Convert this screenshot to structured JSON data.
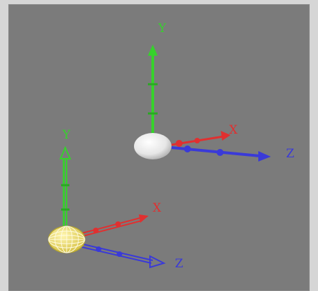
{
  "viewport": {
    "background": "#7b7b7b"
  },
  "gizmos": [
    {
      "object": "sphere-white",
      "x_label": "X",
      "y_label": "Y",
      "z_label": "Z"
    },
    {
      "object": "sphere-wireframe-yellow",
      "x_label": "X",
      "y_label": "Y",
      "z_label": "Z"
    }
  ],
  "colors": {
    "x_axis": "#e03030",
    "y_axis": "#36d22c",
    "z_axis": "#3a3ad8",
    "sphere_white": "#f2f2f2",
    "sphere_wire": "#e8d84a"
  }
}
